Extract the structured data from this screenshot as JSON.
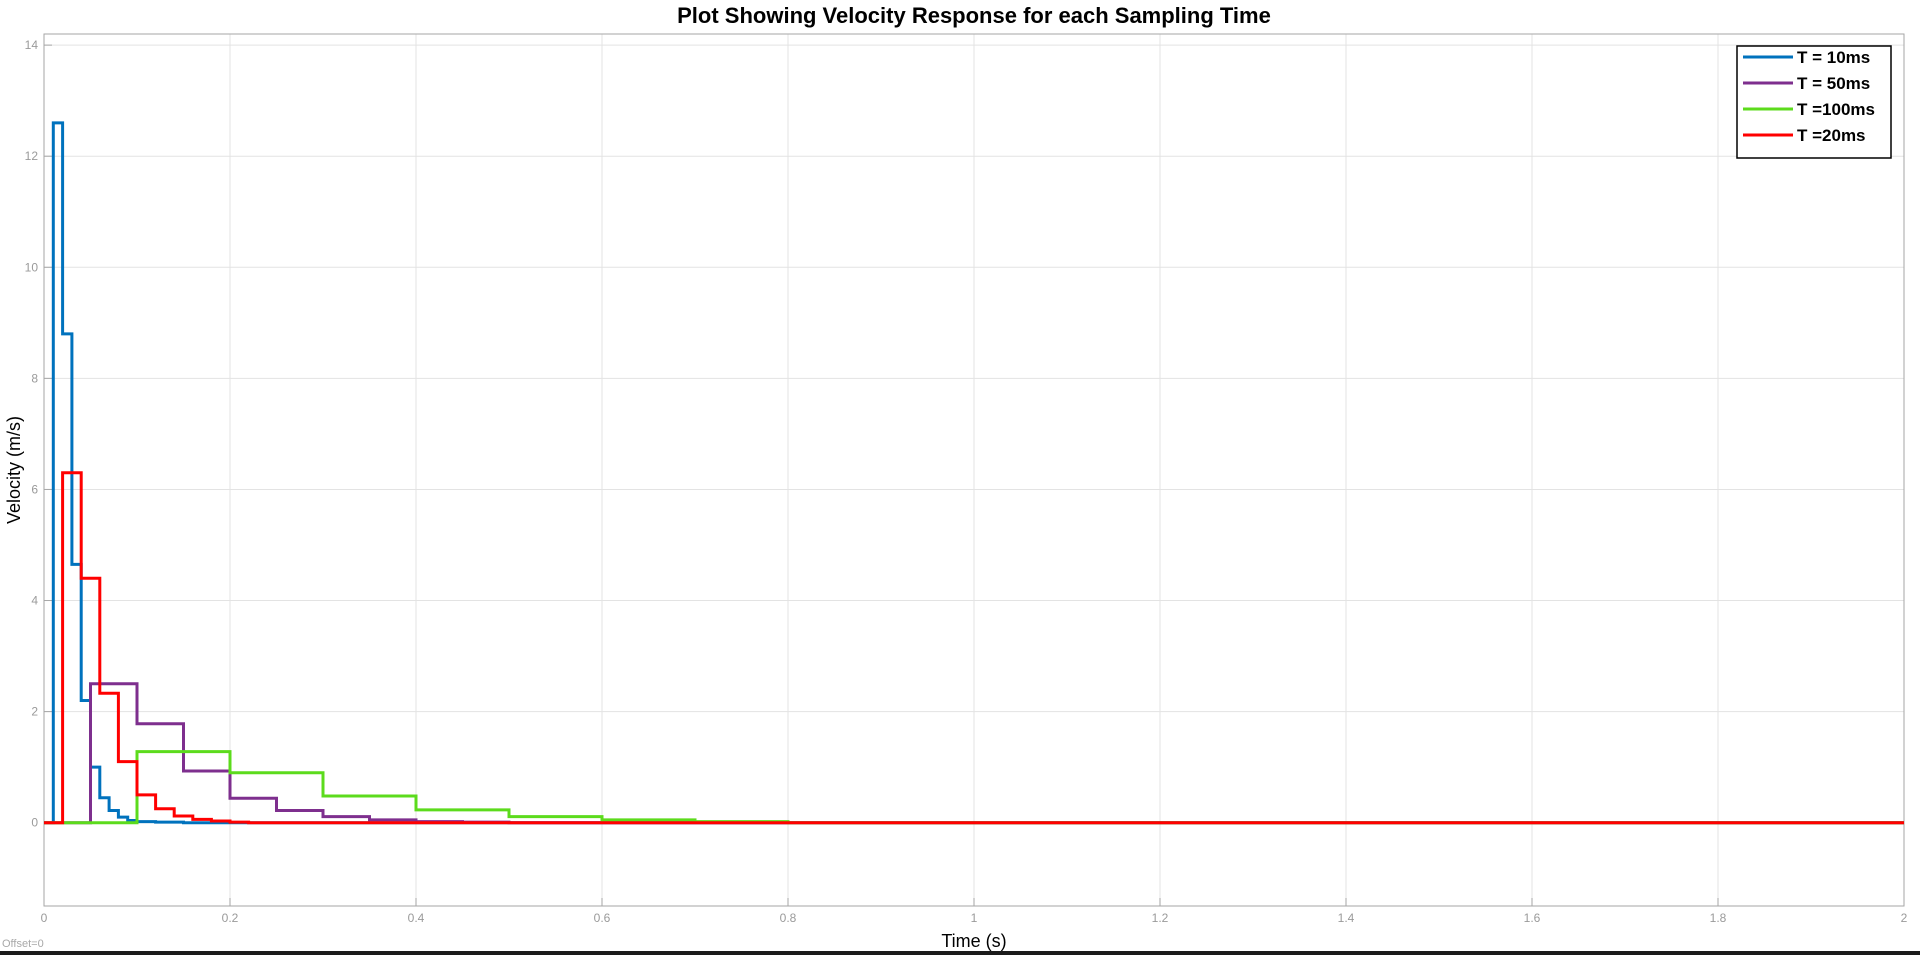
{
  "chart_data": {
    "type": "line",
    "step": true,
    "title": "Plot Showing Velocity Response for each Sampling Time",
    "xlabel": "Time (s)",
    "ylabel": "Velocity (m/s)",
    "xlim": [
      0,
      2
    ],
    "ylim": [
      -1.5,
      14.2
    ],
    "xticks": [
      0,
      0.2,
      0.4,
      0.6,
      0.8,
      1,
      1.2,
      1.4,
      1.6,
      1.8,
      2
    ],
    "xtick_labels": [
      "0",
      "0.2",
      "0.4",
      "0.6",
      "0.8",
      "1",
      "1.2",
      "1.4",
      "1.6",
      "1.8",
      "2"
    ],
    "yticks": [
      0,
      2,
      4,
      6,
      8,
      10,
      12,
      14
    ],
    "ytick_labels": [
      "0",
      "2",
      "4",
      "6",
      "8",
      "10",
      "12",
      "14"
    ],
    "grid": true,
    "legend_position": "top-right",
    "offset_label": "Offset=0",
    "series": [
      {
        "name": "T = 10ms",
        "color": "#0072BD",
        "x": [
          0,
          0.01,
          0.02,
          0.03,
          0.04,
          0.05,
          0.06,
          0.07,
          0.08,
          0.09,
          0.1,
          0.12,
          0.15,
          0.2,
          2
        ],
        "y": [
          0,
          12.6,
          8.8,
          4.65,
          2.2,
          1.0,
          0.45,
          0.22,
          0.1,
          0.04,
          0.02,
          0.01,
          0,
          0,
          0
        ]
      },
      {
        "name": "T = 50ms",
        "color": "#7E2F8E",
        "x": [
          0,
          0.05,
          0.1,
          0.15,
          0.2,
          0.25,
          0.3,
          0.35,
          0.4,
          0.45,
          0.5,
          2
        ],
        "y": [
          0,
          2.5,
          1.78,
          0.93,
          0.44,
          0.22,
          0.11,
          0.05,
          0.02,
          0.01,
          0,
          0
        ]
      },
      {
        "name": "T =100ms",
        "color": "#5CDB1C",
        "x": [
          0,
          0.1,
          0.2,
          0.3,
          0.4,
          0.5,
          0.6,
          0.7,
          0.8,
          2
        ],
        "y": [
          0,
          1.28,
          0.9,
          0.48,
          0.23,
          0.11,
          0.05,
          0.02,
          0,
          0
        ]
      },
      {
        "name": "T =20ms",
        "color": "#FF0000",
        "x": [
          0,
          0.02,
          0.04,
          0.06,
          0.08,
          0.1,
          0.12,
          0.14,
          0.16,
          0.18,
          0.2,
          0.22,
          2
        ],
        "y": [
          0,
          6.3,
          4.4,
          2.33,
          1.1,
          0.5,
          0.25,
          0.12,
          0.06,
          0.03,
          0.01,
          0,
          0
        ]
      }
    ]
  }
}
